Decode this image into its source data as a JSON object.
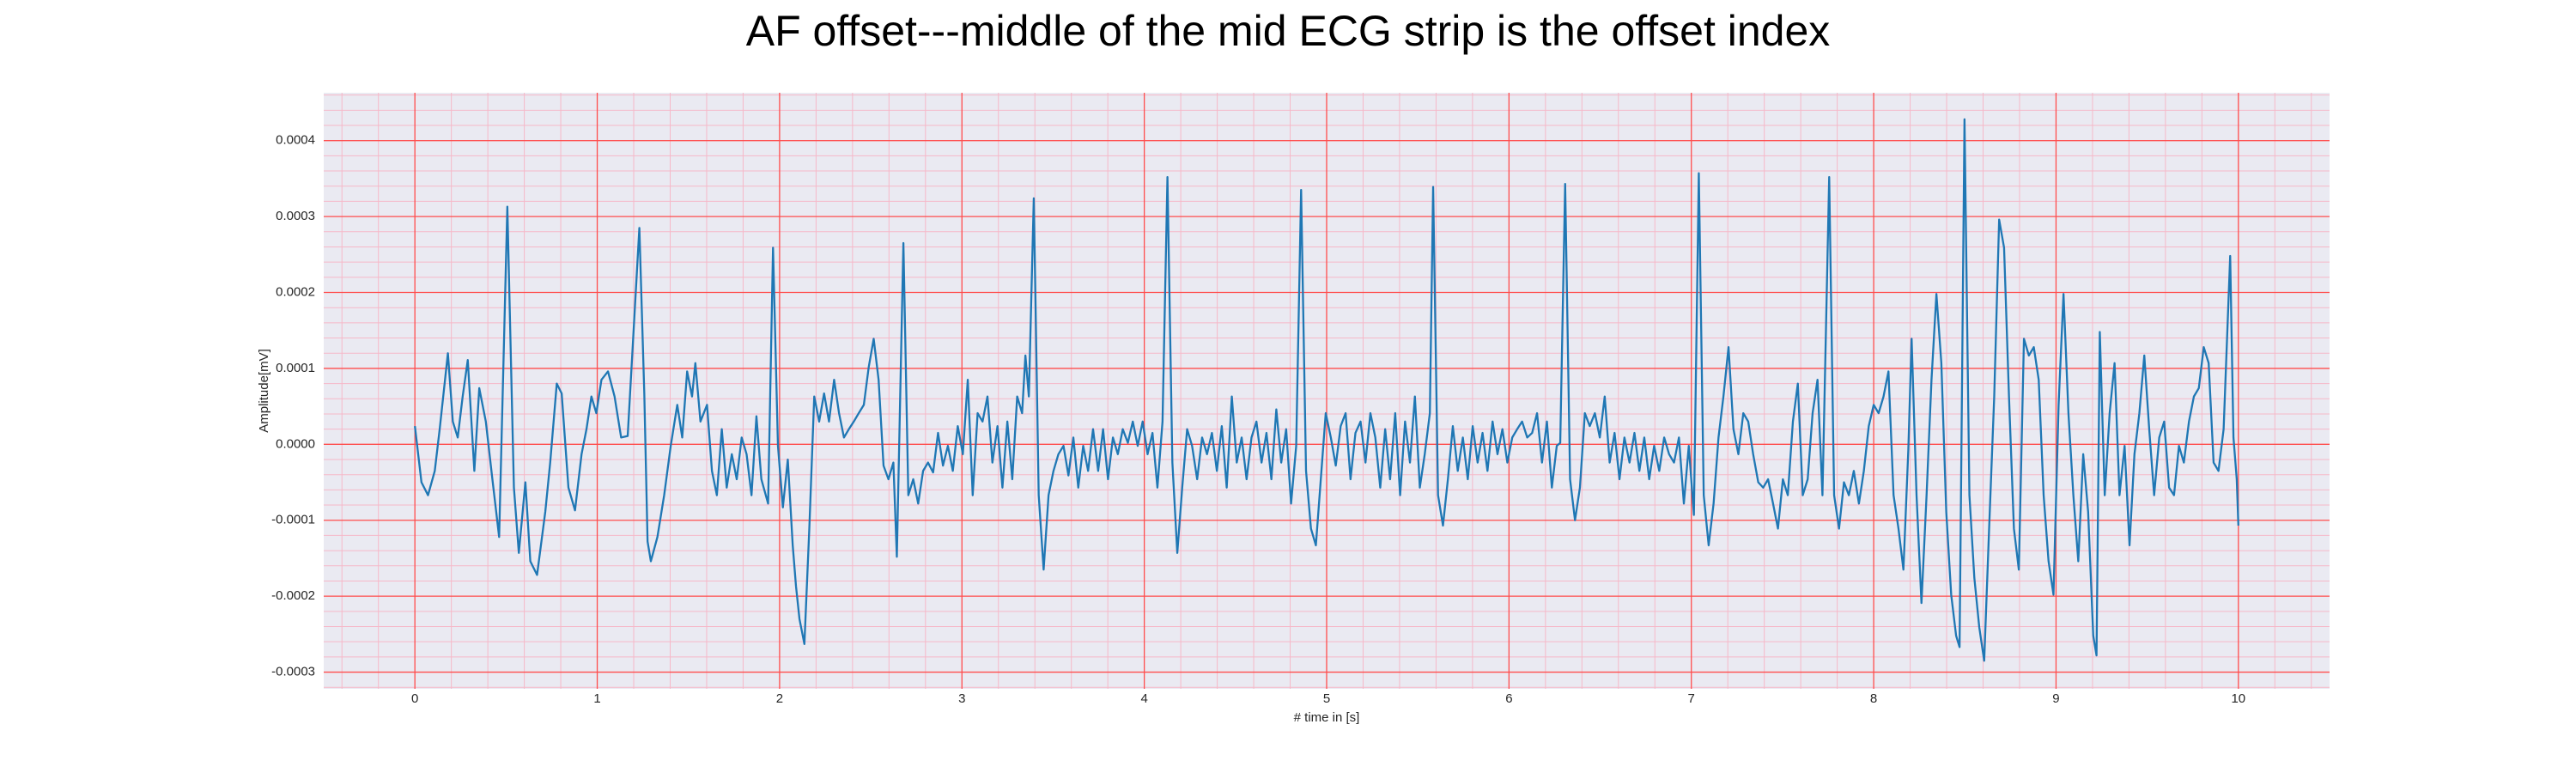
{
  "chart_data": {
    "type": "line",
    "title": "AF offset---middle of the mid ECG strip is the offset index",
    "xlabel": "# time in [s]",
    "ylabel": "Amplitude[mV]",
    "color": "#1f77b4",
    "background": "#eaeaf2",
    "grid": true,
    "grid_color": "#ff4d4d",
    "minor_grid_color": "#f6b8c8",
    "minor_grid_divisions": 5,
    "xlim": [
      -0.5,
      10.5
    ],
    "xticks": [
      0,
      1,
      2,
      3,
      4,
      5,
      6,
      7,
      8,
      9,
      10
    ],
    "ylim": [
      -0.000322,
      0.000463
    ],
    "yticks": [
      -0.0003,
      -0.0002,
      -0.0001,
      {
        "value": 0,
        "label": "0.0000"
      },
      0.0001,
      0.0002,
      0.0003,
      0.0004
    ],
    "x": [
      0,
      0.036,
      0.072,
      0.109,
      0.136,
      0.181,
      0.208,
      0.235,
      0.262,
      0.29,
      0.326,
      0.353,
      0.389,
      0.425,
      0.462,
      0.507,
      0.543,
      0.57,
      0.606,
      0.633,
      0.67,
      0.715,
      0.742,
      0.778,
      0.805,
      0.842,
      0.878,
      0.914,
      0.941,
      0.968,
      0.995,
      1.023,
      1.059,
      1.095,
      1.131,
      1.167,
      1.231,
      1.258,
      1.276,
      1.294,
      1.33,
      1.367,
      1.403,
      1.439,
      1.466,
      1.493,
      1.52,
      1.538,
      1.566,
      1.602,
      1.629,
      1.656,
      1.683,
      1.71,
      1.738,
      1.765,
      1.792,
      1.819,
      1.846,
      1.873,
      1.9,
      1.937,
      1.964,
      1.991,
      2.018,
      2.045,
      2.072,
      2.09,
      2.109,
      2.136,
      2.163,
      2.19,
      2.217,
      2.244,
      2.271,
      2.299,
      2.326,
      2.353,
      2.38,
      2.407,
      2.434,
      2.462,
      2.489,
      2.516,
      2.543,
      2.57,
      2.597,
      2.624,
      2.643,
      2.679,
      2.706,
      2.733,
      2.76,
      2.787,
      2.814,
      2.842,
      2.869,
      2.896,
      2.923,
      2.95,
      2.977,
      3.005,
      3.032,
      3.059,
      3.086,
      3.113,
      3.14,
      3.167,
      3.195,
      3.222,
      3.249,
      3.276,
      3.303,
      3.33,
      3.348,
      3.367,
      3.394,
      3.421,
      3.448,
      3.475,
      3.502,
      3.529,
      3.557,
      3.584,
      3.611,
      3.638,
      3.665,
      3.692,
      3.719,
      3.747,
      3.774,
      3.801,
      3.828,
      3.855,
      3.882,
      3.91,
      3.937,
      3.964,
      3.991,
      4.018,
      4.045,
      4.072,
      4.1,
      4.127,
      4.154,
      4.181,
      4.208,
      4.235,
      4.262,
      4.29,
      4.317,
      4.344,
      4.371,
      4.398,
      4.425,
      4.452,
      4.48,
      4.507,
      4.534,
      4.561,
      4.588,
      4.615,
      4.643,
      4.67,
      4.697,
      4.724,
      4.751,
      4.778,
      4.805,
      4.833,
      4.86,
      4.887,
      4.914,
      4.941,
      4.968,
      4.995,
      5.023,
      5.05,
      5.077,
      5.104,
      5.131,
      5.158,
      5.186,
      5.213,
      5.24,
      5.267,
      5.294,
      5.321,
      5.348,
      5.376,
      5.403,
      5.43,
      5.457,
      5.484,
      5.511,
      5.538,
      5.566,
      5.584,
      5.611,
      5.638,
      5.665,
      5.692,
      5.719,
      5.747,
      5.774,
      5.801,
      5.828,
      5.855,
      5.882,
      5.91,
      5.937,
      5.964,
      5.991,
      6.018,
      6.045,
      6.072,
      6.1,
      6.127,
      6.154,
      6.181,
      6.208,
      6.235,
      6.262,
      6.281,
      6.308,
      6.335,
      6.362,
      6.389,
      6.416,
      6.443,
      6.471,
      6.498,
      6.525,
      6.552,
      6.579,
      6.606,
      6.633,
      6.661,
      6.688,
      6.715,
      6.742,
      6.769,
      6.796,
      6.824,
      6.851,
      6.878,
      6.905,
      6.932,
      6.959,
      6.986,
      7.014,
      7.041,
      7.068,
      7.095,
      7.122,
      7.149,
      7.176,
      7.204,
      7.231,
      7.258,
      7.285,
      7.312,
      7.339,
      7.367,
      7.394,
      7.421,
      7.448,
      7.475,
      7.502,
      7.529,
      7.557,
      7.584,
      7.611,
      7.638,
      7.665,
      7.692,
      7.719,
      7.756,
      7.783,
      7.81,
      7.837,
      7.864,
      7.891,
      7.919,
      7.946,
      7.973,
      8.0,
      8.027,
      8.054,
      8.081,
      8.109,
      8.136,
      8.163,
      8.19,
      8.208,
      8.235,
      8.262,
      8.29,
      8.317,
      8.344,
      8.371,
      8.398,
      8.425,
      8.452,
      8.471,
      8.498,
      8.525,
      8.552,
      8.579,
      8.606,
      8.633,
      8.661,
      8.688,
      8.715,
      8.742,
      8.769,
      8.796,
      8.824,
      8.851,
      8.878,
      8.905,
      8.932,
      8.959,
      8.986,
      9.014,
      9.041,
      9.068,
      9.095,
      9.122,
      9.149,
      9.176,
      9.204,
      9.222,
      9.24,
      9.267,
      9.294,
      9.321,
      9.348,
      9.376,
      9.403,
      9.43,
      9.457,
      9.484,
      9.511,
      9.538,
      9.566,
      9.593,
      9.62,
      9.647,
      9.674,
      9.701,
      9.729,
      9.756,
      9.783,
      9.81,
      9.837,
      9.864,
      9.891,
      9.919,
      9.955,
      9.973,
      9.991,
      10.0
    ],
    "values": [
      2.4e-05,
      -5e-05,
      -6.7e-05,
      -3.5e-05,
      2e-05,
      0.00012,
      3e-05,
      9e-06,
      6.3e-05,
      0.000111,
      -3.5e-05,
      7.4e-05,
      3e-05,
      -4.6e-05,
      -0.000122,
      0.000313,
      -5.7e-05,
      -0.000143,
      -5e-05,
      -0.000154,
      -0.000172,
      -8.9e-05,
      -2.4e-05,
      8e-05,
      6.7e-05,
      -5.7e-05,
      -8.7e-05,
      -1.3e-05,
      2e-05,
      6.3e-05,
      4.1e-05,
      8.5e-05,
      9.6e-05,
      6.3e-05,
      9e-06,
      1.1e-05,
      0.000285,
      6.7e-05,
      -0.000128,
      -0.000154,
      -0.000122,
      -6.7e-05,
      -2e-06,
      5.2e-05,
      9e-06,
      9.6e-05,
      6.3e-05,
      0.000107,
      3e-05,
      5.2e-05,
      -3.5e-05,
      -6.7e-05,
      2e-05,
      -5.7e-05,
      -1.3e-05,
      -4.6e-05,
      9e-06,
      -1.3e-05,
      -6.7e-05,
      3.7e-05,
      -4.6e-05,
      -7.8e-05,
      0.000259,
      -2e-06,
      -8.3e-05,
      -2e-05,
      -0.000133,
      -0.000187,
      -0.00023,
      -0.000263,
      -0.000111,
      6.3e-05,
      3e-05,
      6.7e-05,
      3e-05,
      8.5e-05,
      4.1e-05,
      9e-06,
      2e-05,
      3e-05,
      4.1e-05,
      5.2e-05,
      0.000102,
      0.000139,
      8.5e-05,
      -2.8e-05,
      -4.6e-05,
      -2.4e-05,
      -0.000148,
      0.000265,
      -6.7e-05,
      -4.6e-05,
      -7.8e-05,
      -3.5e-05,
      -2.4e-05,
      -3.7e-05,
      1.5e-05,
      -2.8e-05,
      -2e-06,
      -3.5e-05,
      2.4e-05,
      -1.3e-05,
      8.5e-05,
      -6.7e-05,
      4.1e-05,
      3e-05,
      6.3e-05,
      -2.4e-05,
      2.4e-05,
      -5.7e-05,
      3e-05,
      -4.6e-05,
      6.3e-05,
      4.1e-05,
      0.000117,
      6.3e-05,
      0.000324,
      -6.7e-05,
      -0.000165,
      -6.7e-05,
      -3.5e-05,
      -1.3e-05,
      -2e-06,
      -4.1e-05,
      9e-06,
      -5.7e-05,
      -2e-06,
      -3.5e-05,
      2e-05,
      -3.5e-05,
      2e-05,
      -4.6e-05,
      9e-06,
      -1.3e-05,
      2e-05,
      2e-06,
      3e-05,
      -2e-06,
      3e-05,
      -1.3e-05,
      1.5e-05,
      -5.7e-05,
      3e-05,
      0.000352,
      -2.4e-05,
      -0.000143,
      -5.7e-05,
      2e-05,
      -2e-06,
      -4.6e-05,
      9e-06,
      -1.3e-05,
      1.5e-05,
      -3.5e-05,
      2.4e-05,
      -5.7e-05,
      6.3e-05,
      -2.4e-05,
      9e-06,
      -4.6e-05,
      9e-06,
      3e-05,
      -2.4e-05,
      1.5e-05,
      -4.6e-05,
      4.6e-05,
      -2.4e-05,
      2e-05,
      -7.8e-05,
      -2e-06,
      0.000335,
      -3.5e-05,
      -0.000111,
      -0.000133,
      -4.6e-05,
      4.1e-05,
      9e-06,
      -2.8e-05,
      2.4e-05,
      4.1e-05,
      -4.6e-05,
      1.5e-05,
      3e-05,
      -2.4e-05,
      4.1e-05,
      9e-06,
      -5.7e-05,
      2e-05,
      -4.6e-05,
      4.1e-05,
      -6.7e-05,
      3e-05,
      -2.4e-05,
      6.3e-05,
      -5.7e-05,
      -1.3e-05,
      4.1e-05,
      0.000339,
      -6.7e-05,
      -0.000107,
      -4.6e-05,
      2.4e-05,
      -3.5e-05,
      9e-06,
      -4.6e-05,
      2.4e-05,
      -2.4e-05,
      1.5e-05,
      -3.5e-05,
      3e-05,
      -1.3e-05,
      2e-05,
      -2.4e-05,
      9e-06,
      2e-05,
      3e-05,
      9e-06,
      1.5e-05,
      4.1e-05,
      -2.4e-05,
      3e-05,
      -5.7e-05,
      -2e-06,
      2e-06,
      0.000343,
      -4.6e-05,
      -0.0001,
      -5.7e-05,
      4.1e-05,
      2.4e-05,
      4.1e-05,
      9e-06,
      6.3e-05,
      -2.4e-05,
      1.5e-05,
      -4.6e-05,
      9e-06,
      -2.4e-05,
      1.5e-05,
      -3.5e-05,
      9e-06,
      -4.6e-05,
      -2e-06,
      -3.5e-05,
      9e-06,
      -1.3e-05,
      -2.4e-05,
      9e-06,
      -7.8e-05,
      -2e-06,
      -9.3e-05,
      0.000357,
      -6.7e-05,
      -0.000133,
      -7.8e-05,
      9e-06,
      6.3e-05,
      0.000128,
      2e-05,
      -1.3e-05,
      4.1e-05,
      3e-05,
      -1.3e-05,
      -5e-05,
      -5.7e-05,
      -4.6e-05,
      -7.8e-05,
      -0.000111,
      -4.6e-05,
      -6.7e-05,
      3e-05,
      8e-05,
      -6.7e-05,
      -4.6e-05,
      4.1e-05,
      8.5e-05,
      -6.7e-05,
      0.000352,
      -6.7e-05,
      -0.000111,
      -5e-05,
      -6.7e-05,
      -3.5e-05,
      -7.8e-05,
      -3.5e-05,
      2.4e-05,
      5.2e-05,
      4.1e-05,
      6.3e-05,
      9.6e-05,
      -6.7e-05,
      -0.000111,
      -0.000165,
      -7e-06,
      0.000139,
      -6.7e-05,
      -0.000209,
      -6.7e-05,
      8.5e-05,
      0.000198,
      0.000107,
      -8.9e-05,
      -0.000198,
      -0.000252,
      -0.000267,
      0.000428,
      -6.7e-05,
      -0.000176,
      -0.000241,
      -0.000285,
      -0.000111,
      6.3e-05,
      0.000296,
      0.000259,
      6.3e-05,
      -0.000111,
      -0.000165,
      0.000139,
      0.000117,
      0.000128,
      8.5e-05,
      -6.7e-05,
      -0.000154,
      -0.000198,
      5.2e-05,
      0.000198,
      4.1e-05,
      -6.7e-05,
      -0.000154,
      -1.3e-05,
      -8.9e-05,
      -0.000252,
      -0.000278,
      0.000148,
      -6.7e-05,
      4.1e-05,
      0.000107,
      -6.7e-05,
      -2e-06,
      -0.000133,
      -1.3e-05,
      4.1e-05,
      0.000117,
      2e-05,
      -6.7e-05,
      9e-06,
      3e-05,
      -5.7e-05,
      -6.7e-05,
      -2e-06,
      -2.4e-05,
      3e-05,
      6.3e-05,
      7.4e-05,
      0.000128,
      0.000107,
      -2.4e-05,
      -3.5e-05,
      2e-05,
      0.000248,
      9e-06,
      -4.6e-05,
      -0.000107
    ]
  }
}
